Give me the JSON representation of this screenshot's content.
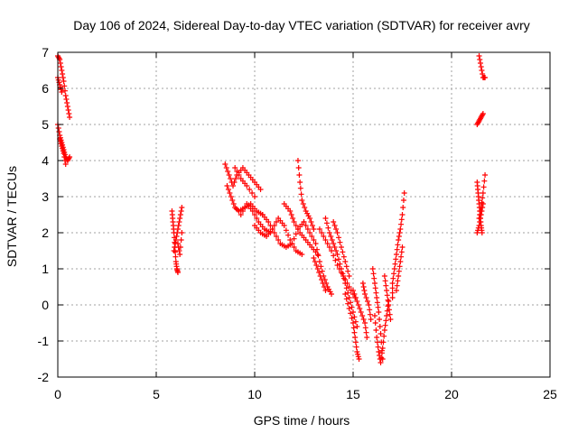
{
  "chart_data": {
    "type": "scatter",
    "title": "Day 106 of 2024, Sidereal Day-to-day VTEC variation (SDTVAR) for receiver avry",
    "xlabel": "GPS time / hours",
    "ylabel": "SDTVAR / TECUs",
    "xlim": [
      0,
      25
    ],
    "ylim": [
      -2,
      7
    ],
    "xticks": [
      0,
      5,
      10,
      15,
      20,
      25
    ],
    "yticks": [
      -2,
      -1,
      0,
      1,
      2,
      3,
      4,
      5,
      6,
      7
    ],
    "grid": true,
    "marker": "+",
    "series": [
      {
        "name": "SDTVAR",
        "color": "#ff0000",
        "segments": [
          [
            [
              0.0,
              6.9
            ],
            [
              0.1,
              6.8
            ],
            [
              0.2,
              6.5
            ],
            [
              0.3,
              6.2
            ],
            [
              0.4,
              5.8
            ],
            [
              0.5,
              5.5
            ],
            [
              0.6,
              5.2
            ]
          ],
          [
            [
              0.0,
              6.3
            ],
            [
              0.1,
              6.1
            ],
            [
              0.2,
              5.9
            ]
          ],
          [
            [
              0.0,
              5.0
            ],
            [
              0.1,
              4.7
            ],
            [
              0.2,
              4.5
            ],
            [
              0.3,
              4.3
            ],
            [
              0.4,
              4.1
            ],
            [
              0.5,
              4.0
            ],
            [
              0.6,
              4.1
            ]
          ],
          [
            [
              0.1,
              4.6
            ],
            [
              0.2,
              4.4
            ],
            [
              0.3,
              4.2
            ],
            [
              0.4,
              3.9
            ]
          ],
          [
            [
              5.8,
              2.6
            ],
            [
              5.85,
              2.3
            ],
            [
              5.9,
              2.0
            ],
            [
              5.95,
              1.6
            ],
            [
              6.0,
              1.2
            ],
            [
              6.05,
              1.0
            ],
            [
              6.1,
              0.9
            ]
          ],
          [
            [
              5.9,
              1.5
            ],
            [
              6.0,
              1.8
            ],
            [
              6.1,
              2.1
            ],
            [
              6.2,
              2.4
            ],
            [
              6.3,
              2.7
            ]
          ],
          [
            [
              6.1,
              1.7
            ],
            [
              6.2,
              1.4
            ],
            [
              6.3,
              2.0
            ]
          ],
          [
            [
              8.5,
              3.9
            ],
            [
              8.7,
              3.6
            ],
            [
              8.9,
              3.3
            ],
            [
              9.1,
              3.6
            ],
            [
              9.4,
              3.8
            ],
            [
              9.7,
              3.6
            ],
            [
              10.0,
              3.4
            ],
            [
              10.3,
              3.2
            ]
          ],
          [
            [
              8.6,
              3.3
            ],
            [
              8.8,
              3.0
            ],
            [
              9.0,
              2.7
            ],
            [
              9.2,
              2.6
            ],
            [
              9.5,
              2.7
            ],
            [
              9.8,
              2.8
            ],
            [
              10.1,
              2.6
            ],
            [
              10.4,
              2.5
            ]
          ],
          [
            [
              9.0,
              3.8
            ],
            [
              9.3,
              3.5
            ],
            [
              9.6,
              3.3
            ],
            [
              10.0,
              3.0
            ]
          ],
          [
            [
              9.3,
              2.5
            ],
            [
              9.6,
              2.8
            ],
            [
              9.9,
              2.6
            ],
            [
              10.2,
              2.3
            ],
            [
              10.5,
              2.1
            ],
            [
              10.8,
              2.0
            ]
          ],
          [
            [
              10.0,
              2.2
            ],
            [
              10.3,
              2.0
            ],
            [
              10.6,
              1.9
            ],
            [
              10.9,
              2.1
            ],
            [
              11.2,
              2.4
            ],
            [
              11.5,
              2.2
            ],
            [
              11.8,
              1.8
            ],
            [
              12.1,
              1.5
            ],
            [
              12.4,
              1.4
            ]
          ],
          [
            [
              10.4,
              2.5
            ],
            [
              10.7,
              2.3
            ],
            [
              11.0,
              2.0
            ],
            [
              11.3,
              1.7
            ],
            [
              11.6,
              1.6
            ],
            [
              11.9,
              1.7
            ],
            [
              12.2,
              2.1
            ],
            [
              12.5,
              2.3
            ]
          ],
          [
            [
              11.5,
              2.8
            ],
            [
              11.8,
              2.6
            ],
            [
              12.0,
              2.3
            ],
            [
              12.3,
              2.0
            ],
            [
              12.6,
              1.8
            ],
            [
              12.9,
              1.6
            ],
            [
              13.2,
              1.4
            ]
          ],
          [
            [
              12.2,
              4.0
            ],
            [
              12.3,
              3.4
            ],
            [
              12.4,
              2.9
            ],
            [
              12.6,
              2.6
            ],
            [
              12.8,
              2.4
            ],
            [
              13.0,
              2.1
            ]
          ],
          [
            [
              12.5,
              2.3
            ],
            [
              12.8,
              2.0
            ],
            [
              13.1,
              1.7
            ],
            [
              13.3,
              1.2
            ],
            [
              13.5,
              0.8
            ],
            [
              13.7,
              0.5
            ],
            [
              13.9,
              0.3
            ]
          ],
          [
            [
              13.0,
              1.3
            ],
            [
              13.2,
              1.0
            ],
            [
              13.4,
              0.7
            ],
            [
              13.6,
              0.4
            ]
          ],
          [
            [
              13.3,
              2.1
            ],
            [
              13.6,
              1.8
            ],
            [
              13.9,
              1.5
            ],
            [
              14.2,
              1.1
            ],
            [
              14.5,
              0.8
            ],
            [
              14.8,
              0.5
            ],
            [
              15.1,
              0.2
            ]
          ],
          [
            [
              13.6,
              2.4
            ],
            [
              13.8,
              2.0
            ],
            [
              14.0,
              1.7
            ],
            [
              14.2,
              1.4
            ],
            [
              14.4,
              1.0
            ],
            [
              14.6,
              0.6
            ],
            [
              14.8,
              0.2
            ],
            [
              15.0,
              -0.2
            ],
            [
              15.2,
              -0.6
            ]
          ],
          [
            [
              14.0,
              2.3
            ],
            [
              14.2,
              2.0
            ],
            [
              14.4,
              1.6
            ],
            [
              14.6,
              1.2
            ],
            [
              14.8,
              0.8
            ]
          ],
          [
            [
              14.6,
              0.3
            ],
            [
              14.8,
              -0.1
            ],
            [
              15.0,
              -0.5
            ],
            [
              15.1,
              -0.9
            ],
            [
              15.2,
              -1.3
            ],
            [
              15.3,
              -1.5
            ]
          ],
          [
            [
              15.0,
              0.4
            ],
            [
              15.2,
              0.1
            ],
            [
              15.4,
              -0.2
            ],
            [
              15.6,
              -0.5
            ],
            [
              15.7,
              -0.9
            ]
          ],
          [
            [
              15.5,
              0.6
            ],
            [
              15.6,
              0.3
            ],
            [
              15.8,
              0.0
            ],
            [
              15.9,
              -0.4
            ]
          ],
          [
            [
              16.0,
              1.0
            ],
            [
              16.1,
              0.6
            ],
            [
              16.2,
              0.2
            ],
            [
              16.3,
              -0.2
            ],
            [
              16.4,
              -0.8
            ],
            [
              16.5,
              -1.5
            ]
          ],
          [
            [
              16.1,
              -0.3
            ],
            [
              16.2,
              -0.9
            ],
            [
              16.3,
              -1.3
            ],
            [
              16.4,
              -1.6
            ],
            [
              16.5,
              -1.2
            ],
            [
              16.6,
              -0.7
            ],
            [
              16.7,
              -0.3
            ],
            [
              16.8,
              0.1
            ]
          ],
          [
            [
              16.6,
              0.8
            ],
            [
              16.7,
              0.4
            ],
            [
              16.8,
              0.0
            ],
            [
              16.9,
              -0.4
            ]
          ],
          [
            [
              17.0,
              0.2
            ],
            [
              17.0,
              0.6
            ],
            [
              17.1,
              1.0
            ],
            [
              17.2,
              1.4
            ],
            [
              17.3,
              1.8
            ],
            [
              17.4,
              2.1
            ],
            [
              17.5,
              2.5
            ],
            [
              17.6,
              3.1
            ]
          ],
          [
            [
              17.2,
              0.4
            ],
            [
              17.3,
              0.8
            ],
            [
              17.4,
              1.2
            ],
            [
              17.5,
              1.6
            ]
          ],
          [
            [
              21.4,
              6.9
            ],
            [
              21.5,
              6.6
            ],
            [
              21.6,
              6.3
            ],
            [
              21.7,
              6.3
            ]
          ],
          [
            [
              21.3,
              5.0
            ],
            [
              21.4,
              5.1
            ],
            [
              21.5,
              5.2
            ],
            [
              21.6,
              5.3
            ]
          ],
          [
            [
              21.3,
              3.4
            ],
            [
              21.35,
              3.1
            ],
            [
              21.4,
              2.8
            ],
            [
              21.45,
              2.5
            ],
            [
              21.5,
              2.2
            ],
            [
              21.55,
              2.0
            ]
          ],
          [
            [
              21.4,
              2.4
            ],
            [
              21.5,
              2.7
            ],
            [
              21.6,
              3.1
            ],
            [
              21.7,
              3.6
            ]
          ],
          [
            [
              21.3,
              2.0
            ],
            [
              21.4,
              2.2
            ],
            [
              21.5,
              2.5
            ],
            [
              21.6,
              2.8
            ]
          ]
        ]
      }
    ]
  }
}
